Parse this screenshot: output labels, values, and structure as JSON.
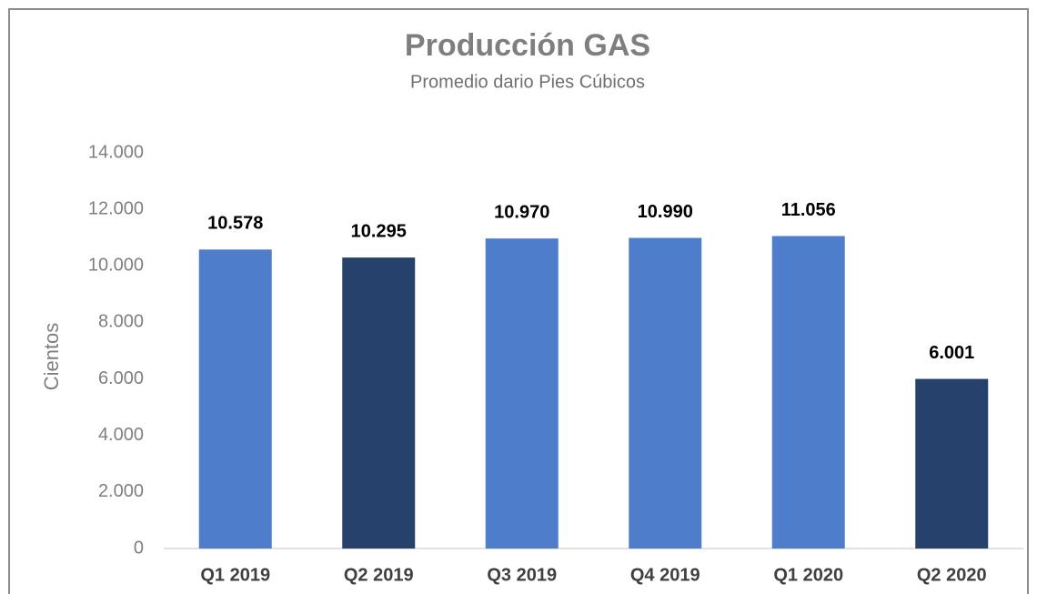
{
  "chart_data": {
    "type": "bar",
    "title": "Producción GAS",
    "subtitle": "Promedio dario Pies Cúbicos",
    "y_label": "Cientos",
    "categories": [
      "Q1 2019",
      "Q2 2019",
      "Q3 2019",
      "Q4 2019",
      "Q1 2020",
      "Q2 2020"
    ],
    "values": [
      10578,
      10295,
      10970,
      10990,
      11056,
      6001
    ],
    "value_labels": [
      "10.578",
      "10.295",
      "10.970",
      "10.990",
      "11.056",
      "6.001"
    ],
    "colors": [
      "#4e7ecb",
      "#27416d",
      "#4e7ecb",
      "#4e7ecb",
      "#4e7ecb",
      "#27416d"
    ],
    "ylim": [
      0,
      14000
    ],
    "yticks": [
      0,
      {
        "value": 2000,
        "label": "2.000"
      },
      {
        "value": 4000,
        "label": "4.000"
      },
      {
        "value": 6000,
        "label": "6.000"
      },
      {
        "value": 8000,
        "label": "8.000"
      },
      {
        "value": 10000,
        "label": "10.000"
      },
      {
        "value": 12000,
        "label": "12.000"
      },
      {
        "value": 14000,
        "label": "14.000"
      }
    ],
    "grid": false
  }
}
